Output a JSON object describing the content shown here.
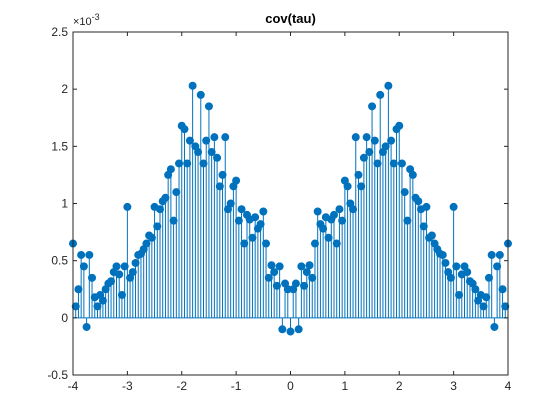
{
  "chart_data": {
    "type": "stem",
    "title": "cov(tau)",
    "xlabel": "",
    "ylabel": "",
    "xlim": [
      -4,
      4
    ],
    "ylim": [
      -0.5,
      2.5
    ],
    "y_exponent_label": "×10",
    "y_exponent_power": "-3",
    "x_ticks": [
      -4,
      -3,
      -2,
      -1,
      0,
      1,
      2,
      3,
      4
    ],
    "y_ticks": [
      -0.5,
      0,
      0.5,
      1,
      1.5,
      2,
      2.5
    ],
    "x_tick_labels": [
      "-4",
      "-3",
      "-2",
      "-1",
      "0",
      "1",
      "2",
      "3",
      "4"
    ],
    "y_tick_labels": [
      "-0.5",
      "0",
      "0.5",
      "1",
      "1.5",
      "2",
      "2.5"
    ],
    "grid": false,
    "box": true,
    "colors": {
      "stem": "#0072BD",
      "axis": "#262626",
      "background": "#ffffff"
    },
    "series": [
      {
        "x_half": [
          0.0,
          0.05,
          0.1,
          0.15,
          0.2,
          0.25,
          0.3,
          0.35,
          0.4,
          0.45,
          0.5,
          0.55,
          0.6,
          0.65,
          0.7,
          0.75,
          0.8,
          0.85,
          0.9,
          0.95,
          1.0,
          1.05,
          1.1,
          1.15,
          1.2,
          1.25,
          1.3,
          1.35,
          1.4,
          1.45,
          1.5,
          1.55,
          1.6,
          1.65,
          1.7,
          1.75,
          1.8,
          1.85,
          1.9,
          1.95,
          2.0,
          2.05,
          2.1,
          2.15,
          2.2,
          2.25,
          2.3,
          2.35,
          2.4,
          2.45,
          2.5,
          2.55,
          2.6,
          2.65,
          2.7,
          2.75,
          2.8,
          2.85,
          2.9,
          2.95,
          3.0,
          3.05,
          3.1,
          3.15,
          3.2,
          3.25,
          3.3,
          3.35,
          3.4,
          3.45,
          3.5,
          3.55,
          3.6,
          3.65,
          3.7,
          3.75,
          3.8,
          3.85,
          3.9,
          3.95,
          4.0
        ],
        "y_half": [
          -0.12,
          0.25,
          0.3,
          -0.1,
          0.45,
          0.28,
          0.4,
          0.46,
          0.35,
          0.65,
          0.93,
          0.82,
          0.78,
          0.88,
          0.7,
          0.86,
          0.9,
          0.65,
          0.95,
          0.85,
          1.2,
          1.15,
          1.0,
          0.95,
          1.58,
          1.25,
          1.15,
          1.4,
          1.58,
          1.45,
          1.85,
          1.55,
          1.35,
          1.95,
          1.45,
          1.5,
          2.03,
          1.55,
          1.35,
          1.65,
          1.68,
          1.35,
          1.1,
          0.85,
          1.3,
          1.25,
          1.05,
          1.02,
          0.95,
          0.8,
          0.97,
          0.7,
          0.72,
          0.65,
          0.6,
          0.56,
          0.55,
          0.48,
          0.4,
          0.35,
          0.97,
          0.45,
          0.2,
          0.38,
          0.45,
          0.4,
          0.32,
          0.3,
          0.25,
          0.15,
          0.2,
          0.1,
          0.18,
          0.35,
          0.55,
          -0.08,
          0.45,
          0.55,
          0.25,
          0.1,
          0.65
        ]
      }
    ]
  }
}
